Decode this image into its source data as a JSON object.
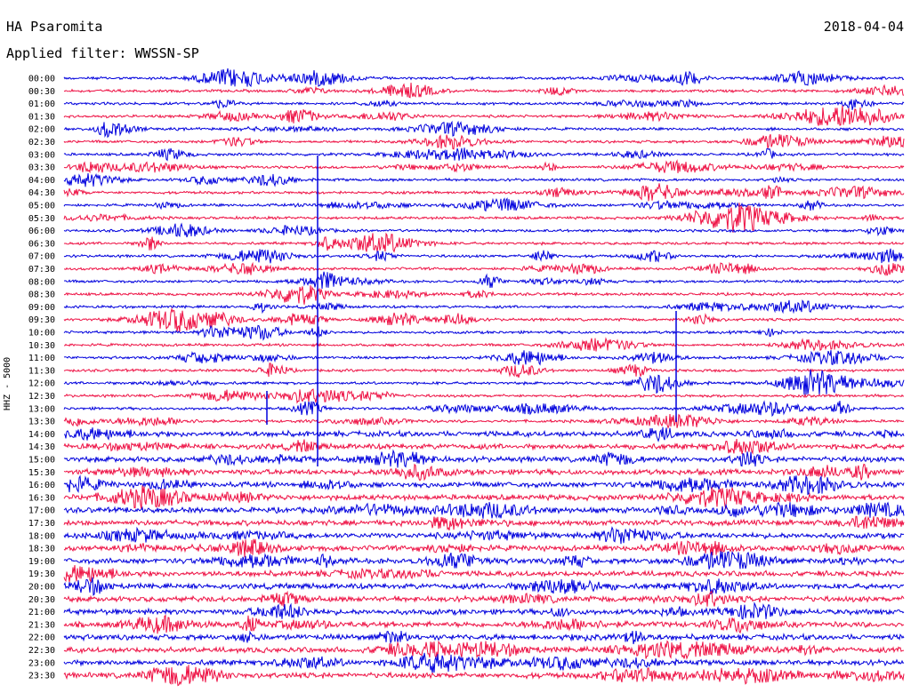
{
  "station": "HA Psaromita",
  "date": "2018-04-04",
  "filter": "Applied filter: WWSSN-SP",
  "channel": "HHZ - 5000",
  "colors": {
    "odd_row": "#0000dd",
    "even_row": "#ee1144"
  },
  "chart_data": {
    "type": "line",
    "title": "HA Psaromita",
    "ylabel": "HHZ - 5000",
    "y_tick_labels": [
      "00:00",
      "00:30",
      "01:00",
      "01:30",
      "02:00",
      "02:30",
      "03:00",
      "03:30",
      "04:00",
      "04:30",
      "05:00",
      "05:30",
      "06:00",
      "06:30",
      "07:00",
      "07:30",
      "08:00",
      "08:30",
      "09:00",
      "09:30",
      "10:00",
      "10:30",
      "11:00",
      "11:30",
      "12:00",
      "12:30",
      "13:00",
      "13:30",
      "14:00",
      "14:30",
      "15:00",
      "15:30",
      "16:00",
      "16:30",
      "17:00",
      "17:30",
      "18:00",
      "18:30",
      "19:00",
      "19:30",
      "20:00",
      "20:30",
      "21:00",
      "21:30",
      "22:00",
      "22:30",
      "23:00",
      "23:30"
    ],
    "series_colors": [
      "#0000dd",
      "#ee1144"
    ],
    "grid": false
  }
}
